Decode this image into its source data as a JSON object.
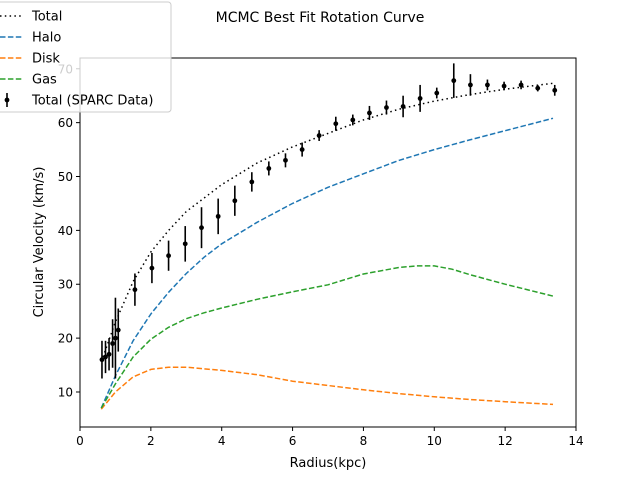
{
  "chart_data": {
    "type": "line",
    "title": "MCMC Best Fit Rotation Curve",
    "xlabel": "Radius(kpc)",
    "ylabel": "Circular Velocity (km/s)",
    "xlim": [
      0,
      14
    ],
    "ylim": [
      3.5,
      72
    ],
    "xticks": [
      0,
      2,
      4,
      6,
      8,
      10,
      12,
      14
    ],
    "yticks": [
      10,
      20,
      30,
      40,
      50,
      60,
      70
    ],
    "grid": false,
    "legend_position": "top-left",
    "series": [
      {
        "name": "Total",
        "style": "dotted",
        "color": "#000000",
        "x": [
          0.65,
          1.0,
          1.5,
          2.0,
          2.5,
          3.0,
          3.5,
          4.0,
          5.0,
          6.0,
          7.0,
          8.0,
          9.0,
          10.0,
          11.0,
          12.0,
          13.35
        ],
        "y": [
          16.5,
          23.0,
          30.5,
          36.0,
          40.0,
          43.5,
          46.0,
          48.5,
          52.5,
          55.5,
          58.0,
          60.5,
          62.5,
          64.0,
          65.2,
          66.2,
          67.3
        ]
      },
      {
        "name": "Halo",
        "style": "dashed",
        "color": "#1f77b4",
        "x": [
          0.6,
          1.0,
          1.5,
          2.0,
          2.5,
          3.0,
          3.5,
          4.0,
          5.0,
          6.0,
          7.0,
          8.0,
          9.0,
          10.0,
          11.0,
          12.0,
          13.35
        ],
        "y": [
          7.0,
          13.0,
          19.5,
          24.5,
          28.5,
          32.0,
          35.0,
          37.5,
          41.5,
          45.0,
          48.0,
          50.5,
          53.0,
          55.0,
          56.8,
          58.5,
          60.8
        ]
      },
      {
        "name": "Disk",
        "style": "dashed",
        "color": "#ff7f0e",
        "x": [
          0.6,
          1.0,
          1.5,
          2.0,
          2.5,
          3.0,
          3.5,
          4.0,
          5.0,
          6.0,
          7.0,
          8.0,
          9.0,
          10.0,
          11.0,
          12.0,
          13.35
        ],
        "y": [
          6.8,
          10.0,
          12.8,
          14.2,
          14.6,
          14.6,
          14.3,
          14.0,
          13.2,
          12.0,
          11.2,
          10.4,
          9.7,
          9.1,
          8.6,
          8.2,
          7.7
        ]
      },
      {
        "name": "Gas",
        "style": "dashed",
        "color": "#2ca02c",
        "x": [
          0.6,
          1.0,
          1.5,
          2.0,
          2.5,
          3.0,
          3.5,
          4.0,
          5.0,
          6.0,
          7.0,
          8.0,
          9.0,
          9.5,
          10.0,
          10.5,
          11.0,
          12.0,
          13.35
        ],
        "y": [
          7.0,
          11.5,
          16.5,
          19.8,
          22.0,
          23.6,
          24.7,
          25.6,
          27.2,
          28.6,
          29.9,
          31.9,
          33.1,
          33.4,
          33.4,
          32.8,
          31.8,
          30.0,
          27.8
        ]
      }
    ],
    "errorbar_series": {
      "name": "Total (SPARC Data)",
      "color": "#000000",
      "points": [
        {
          "x": 0.62,
          "y": 16.0,
          "err": 3.5
        },
        {
          "x": 0.72,
          "y": 16.5,
          "err": 3.0
        },
        {
          "x": 0.82,
          "y": 17.0,
          "err": 3.0
        },
        {
          "x": 0.92,
          "y": 19.0,
          "err": 4.5
        },
        {
          "x": 1.0,
          "y": 20.0,
          "err": 7.5
        },
        {
          "x": 1.08,
          "y": 21.5,
          "err": 4.0
        },
        {
          "x": 1.55,
          "y": 29.0,
          "err": 3.0
        },
        {
          "x": 2.03,
          "y": 33.0,
          "err": 2.8
        },
        {
          "x": 2.5,
          "y": 35.3,
          "err": 2.8
        },
        {
          "x": 2.97,
          "y": 37.5,
          "err": 3.3
        },
        {
          "x": 3.43,
          "y": 40.5,
          "err": 3.8
        },
        {
          "x": 3.9,
          "y": 42.6,
          "err": 3.3
        },
        {
          "x": 4.37,
          "y": 45.5,
          "err": 2.8
        },
        {
          "x": 4.85,
          "y": 49.0,
          "err": 1.8
        },
        {
          "x": 5.33,
          "y": 51.5,
          "err": 1.3
        },
        {
          "x": 5.8,
          "y": 53.0,
          "err": 1.3
        },
        {
          "x": 6.27,
          "y": 55.0,
          "err": 1.3
        },
        {
          "x": 6.75,
          "y": 57.6,
          "err": 1.0
        },
        {
          "x": 7.22,
          "y": 59.8,
          "err": 1.3
        },
        {
          "x": 7.7,
          "y": 60.5,
          "err": 1.0
        },
        {
          "x": 8.17,
          "y": 61.8,
          "err": 1.3
        },
        {
          "x": 8.65,
          "y": 62.8,
          "err": 1.3
        },
        {
          "x": 9.12,
          "y": 63.0,
          "err": 2.0
        },
        {
          "x": 9.6,
          "y": 64.5,
          "err": 2.5
        },
        {
          "x": 10.07,
          "y": 65.5,
          "err": 1.0
        },
        {
          "x": 10.55,
          "y": 67.8,
          "err": 3.2
        },
        {
          "x": 11.02,
          "y": 67.0,
          "err": 2.0
        },
        {
          "x": 11.5,
          "y": 67.0,
          "err": 1.0
        },
        {
          "x": 11.97,
          "y": 66.8,
          "err": 0.8
        },
        {
          "x": 12.45,
          "y": 67.0,
          "err": 0.8
        },
        {
          "x": 12.92,
          "y": 66.4,
          "err": 0.6
        },
        {
          "x": 13.4,
          "y": 66.0,
          "err": 1.0
        }
      ]
    },
    "legend": [
      "Total",
      "Halo",
      "Disk",
      "Gas",
      "Total (SPARC Data)"
    ]
  }
}
